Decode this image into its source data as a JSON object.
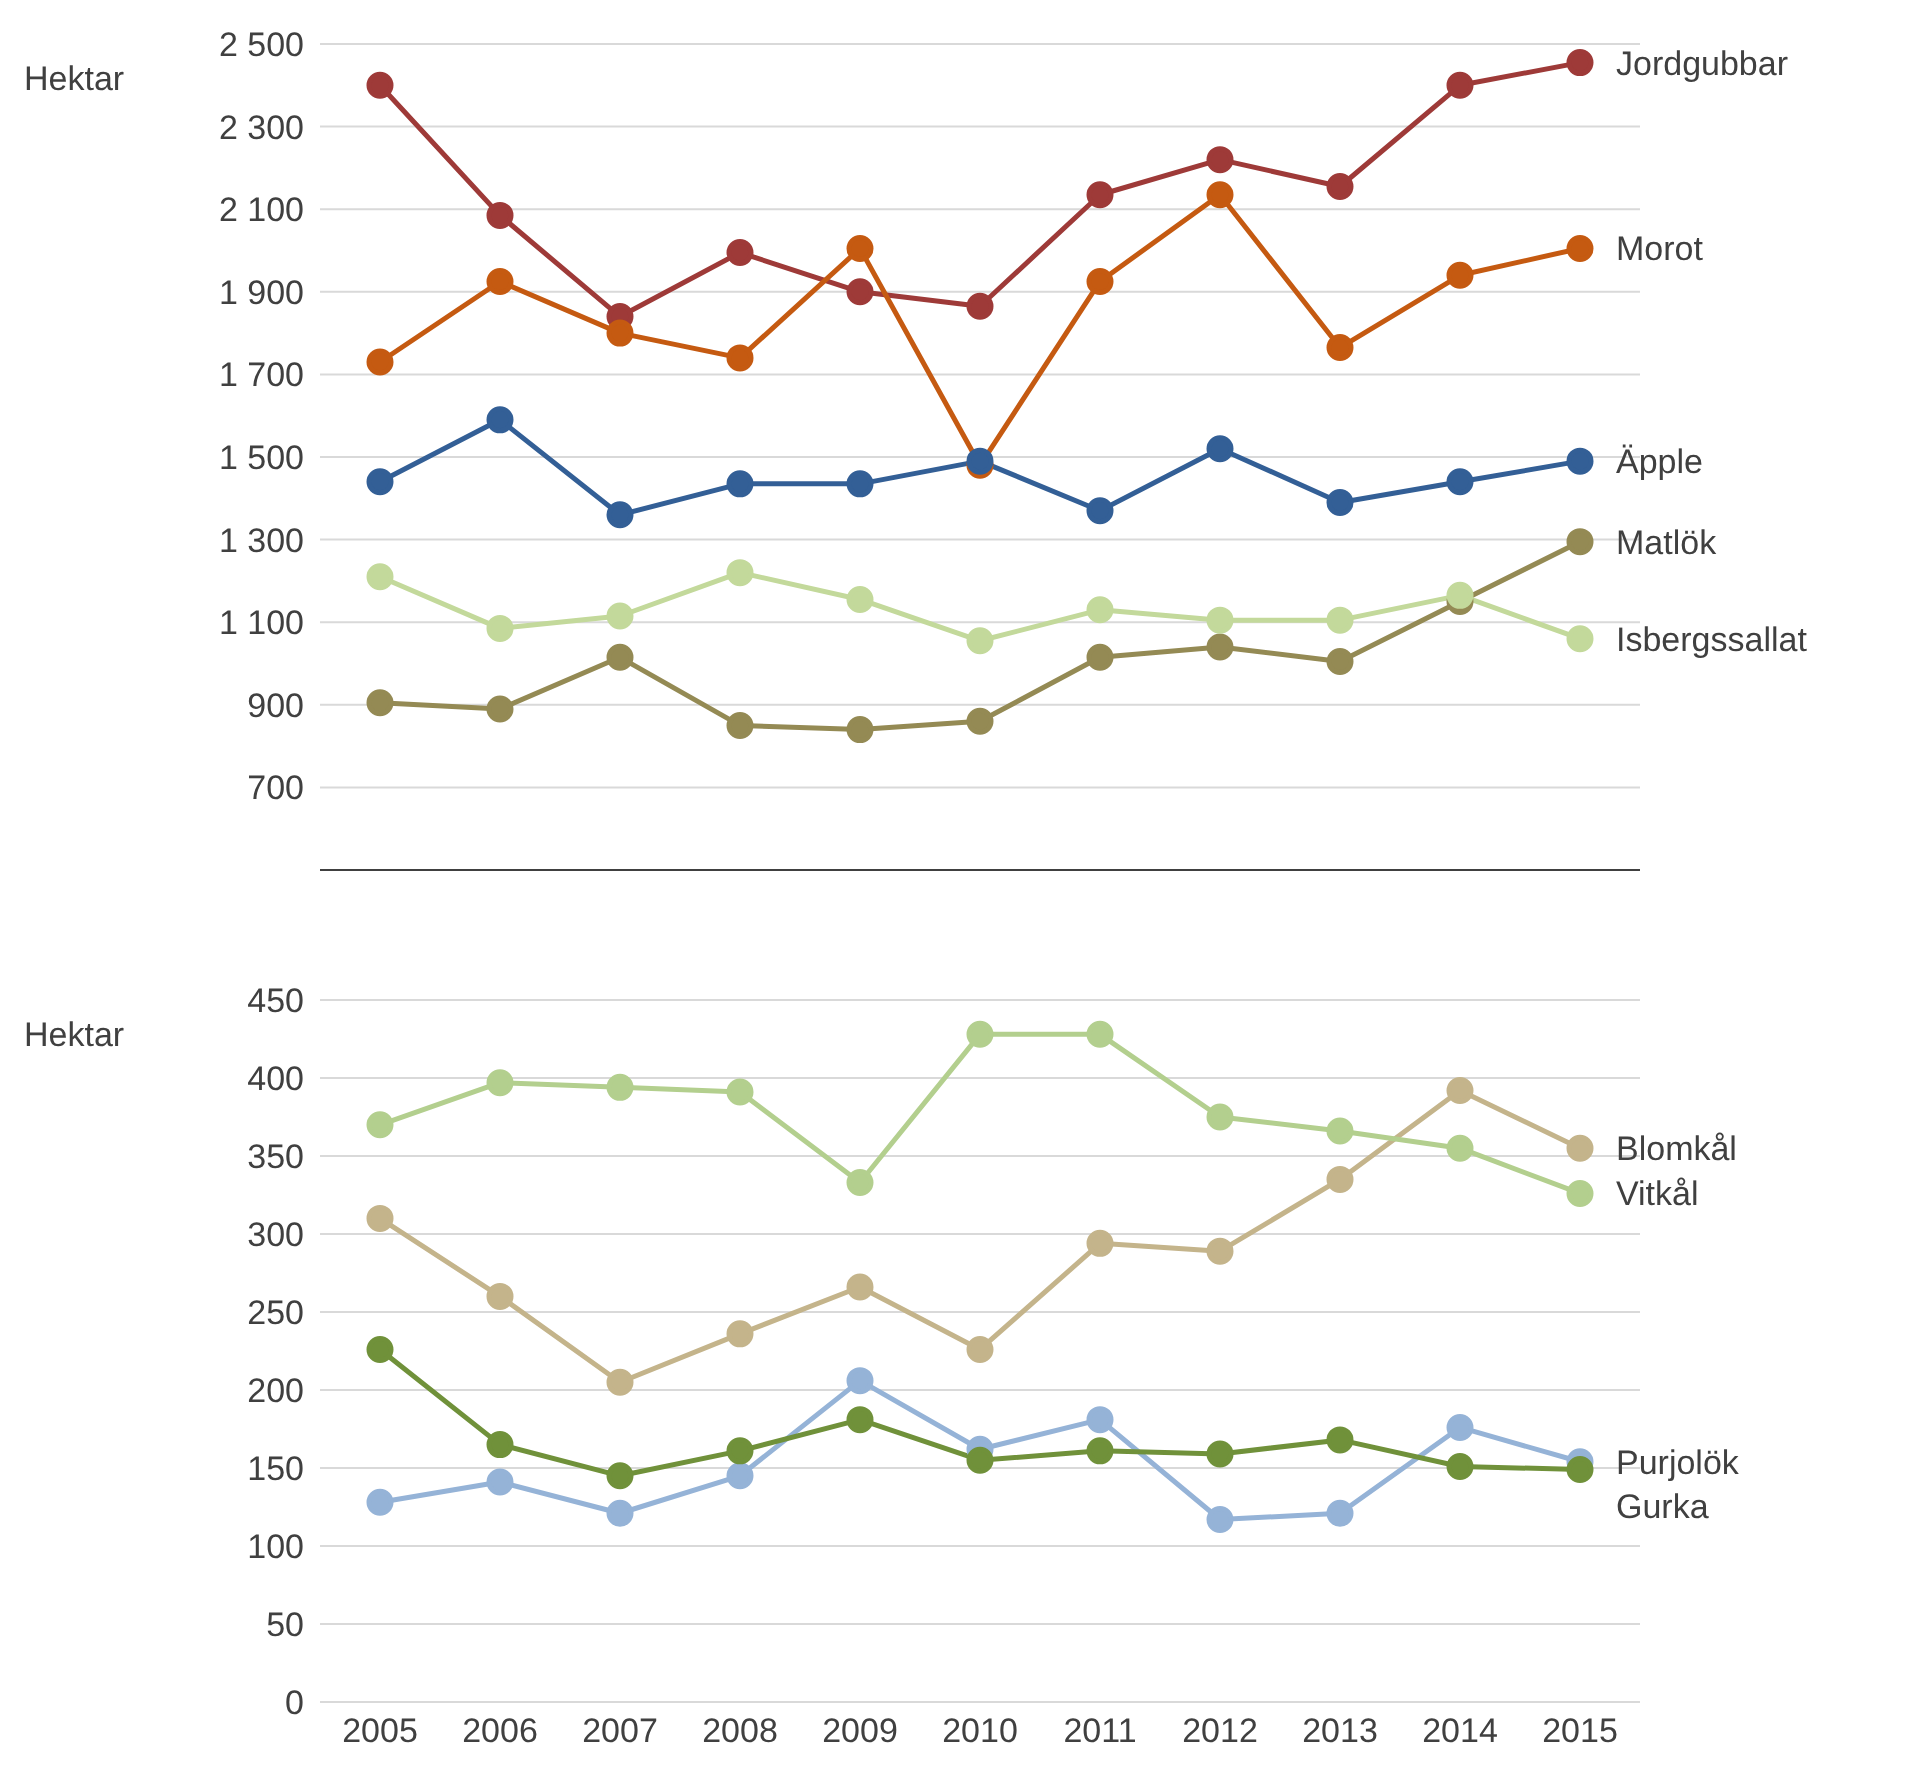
{
  "chart_data": [
    {
      "type": "line",
      "ylabel": "Hektar",
      "categories": [
        "2005",
        "2006",
        "2007",
        "2008",
        "2009",
        "2010",
        "2011",
        "2012",
        "2013",
        "2014",
        "2015"
      ],
      "ylim": [
        500,
        2500
      ],
      "yticks": [
        {
          "value": 500,
          "label": null
        },
        700,
        {
          "value": 900,
          "label": "900"
        },
        {
          "value": 1100,
          "label": "1 100"
        },
        {
          "value": 1300,
          "label": "1 300"
        },
        {
          "value": 1500,
          "label": "1 500"
        },
        {
          "value": 1700,
          "label": "1 700"
        },
        {
          "value": 1900,
          "label": "1 900"
        },
        {
          "value": 2100,
          "label": "2 100"
        },
        {
          "value": 2300,
          "label": "2 300"
        },
        {
          "value": 2500,
          "label": "2 500"
        }
      ],
      "grid": "y",
      "marker": "circle",
      "line_style": "solid",
      "tick_labels": "y",
      "series": [
        {
          "name": "Jordgubbar",
          "color": "#9e3a38",
          "values": [
            2400,
            2085,
            1840,
            1995,
            1900,
            1865,
            2135,
            2220,
            2155,
            2400,
            2455
          ]
        },
        {
          "name": "Morot",
          "color": "#c55a11",
          "values": [
            1730,
            1925,
            1800,
            1740,
            2005,
            1480,
            1925,
            2135,
            1765,
            1940,
            2005
          ]
        },
        {
          "name": "Äpple",
          "color": "#335f96",
          "values": [
            1440,
            1590,
            1360,
            1435,
            1435,
            1490,
            1370,
            1520,
            1390,
            1440,
            1490
          ]
        },
        {
          "name": "Matlök",
          "color": "#948a54",
          "values": [
            905,
            890,
            1015,
            850,
            840,
            860,
            1015,
            1040,
            1005,
            1150,
            1295
          ]
        },
        {
          "name": "Isbergssallat",
          "color": "#c3d99b",
          "values": [
            1210,
            1085,
            1115,
            1220,
            1155,
            1055,
            1130,
            1105,
            1105,
            1165,
            1060
          ]
        }
      ]
    },
    {
      "type": "line",
      "ylabel": "Hektar",
      "categories": [
        "2005",
        "2006",
        "2007",
        "2008",
        "2009",
        "2010",
        "2011",
        "2012",
        "2013",
        "2014",
        "2015"
      ],
      "ylim": [
        0,
        450
      ],
      "yticks": [
        0,
        50,
        100,
        150,
        200,
        250,
        300,
        350,
        400,
        450
      ],
      "grid": "y",
      "marker": "circle",
      "line_style": "solid",
      "series": [
        {
          "name": "Blomkål",
          "color": "#c4b48b",
          "values": [
            310,
            260,
            205,
            236,
            266,
            226,
            294,
            289,
            335,
            392,
            355
          ]
        },
        {
          "name": "Vitkål",
          "color": "#b3cf8e",
          "values": [
            370,
            397,
            394,
            391,
            333,
            428,
            428,
            375,
            366,
            355,
            326
          ]
        },
        {
          "name": "Purjolök",
          "color": "#95b3d7",
          "values": [
            128,
            141,
            121,
            145,
            206,
            162,
            181,
            117,
            121,
            176,
            154
          ]
        },
        {
          "name": "Gurka",
          "color": "#70913a",
          "values": [
            226,
            165,
            145,
            161,
            181,
            155,
            161,
            159,
            168,
            151,
            149
          ]
        }
      ]
    }
  ]
}
